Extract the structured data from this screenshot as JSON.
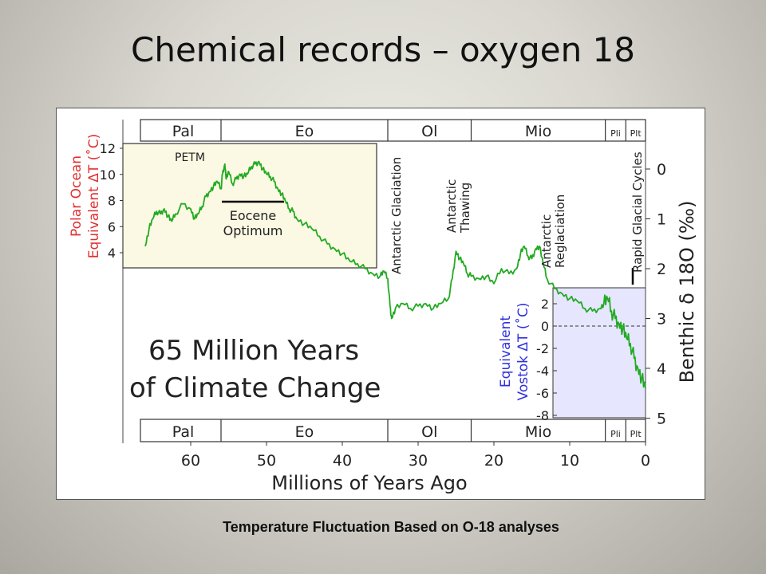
{
  "slide": {
    "title": "Chemical records – oxygen 18",
    "caption": "Temperature Fluctuation Based on O-18 analyses"
  },
  "chart_data": {
    "type": "line",
    "title_lines": [
      "65 Million Years",
      "of Climate Change"
    ],
    "xlabel": "Millions of Years Ago",
    "x_ticks": [
      60,
      50,
      40,
      30,
      20,
      10,
      0
    ],
    "xlim": [
      67,
      0
    ],
    "y_left_label": [
      "Polar Ocean",
      "Equivalent ΔT (˚C)"
    ],
    "y_left_ticks": [
      12,
      10,
      8,
      6,
      4
    ],
    "y_right_label": "Benthic δ 18O (‰)",
    "y_right_ticks": [
      0,
      1,
      2,
      3,
      4,
      5
    ],
    "y_right_lim": [
      5,
      -0.3
    ],
    "vostok_label": [
      "Equivalent",
      "Vostok ΔT (˚C)"
    ],
    "vostok_ticks": [
      "2",
      "0",
      "-2",
      "-4",
      "-6",
      "-8"
    ],
    "epochs": [
      {
        "name": "Pal",
        "start": 66,
        "end": 56
      },
      {
        "name": "Eo",
        "start": 56,
        "end": 34
      },
      {
        "name": "Ol",
        "start": 34,
        "end": 23
      },
      {
        "name": "Mio",
        "start": 23,
        "end": 5.3
      },
      {
        "name": "Pli",
        "start": 5.3,
        "end": 2.6
      },
      {
        "name": "Plt",
        "start": 2.6,
        "end": 0
      }
    ],
    "annotations": [
      {
        "id": "petm",
        "lines": [
          "PETM"
        ]
      },
      {
        "id": "eocene",
        "lines": [
          "Eocene",
          "Optimum"
        ]
      },
      {
        "id": "ant-glaciation",
        "lines": [
          "Antarctic Glaciation"
        ]
      },
      {
        "id": "ant-thawing",
        "lines": [
          "Antarctic",
          "Thawing"
        ]
      },
      {
        "id": "ant-reglaciation",
        "lines": [
          "Antarctic",
          "Reglaciation"
        ]
      },
      {
        "id": "rapid-glacial",
        "lines": [
          "Rapid Glacial Cycles"
        ]
      }
    ],
    "series": [
      {
        "color": "#22aa22",
        "x": [
          66,
          65.5,
          65,
          64.5,
          64,
          63.5,
          63,
          62.5,
          62,
          61,
          60,
          59.5,
          59,
          58.5,
          58,
          57.5,
          57,
          56.5,
          56,
          55.8,
          55.5,
          55.3,
          55,
          54.5,
          54,
          53.5,
          53,
          52.5,
          52,
          51.5,
          51,
          50.5,
          50,
          49.5,
          49,
          48.5,
          48,
          47.5,
          47,
          46.5,
          46,
          45,
          44,
          43,
          42,
          41,
          40,
          39,
          38,
          37,
          36,
          35,
          34.5,
          34,
          33.7,
          33.5,
          33,
          32,
          31,
          30,
          29,
          28,
          27,
          26,
          25.5,
          25,
          24.5,
          24,
          23.5,
          23,
          22,
          21,
          20,
          19,
          18,
          17,
          16.5,
          16,
          15.5,
          15,
          14.5,
          14,
          13.5,
          13,
          12,
          11,
          10,
          9,
          8,
          7,
          6,
          5.5,
          5,
          4.5,
          4,
          3.5,
          3,
          2.5,
          2,
          1.5,
          1,
          0.5,
          0
        ],
        "y": [
          1.55,
          1.2,
          1.0,
          0.85,
          0.9,
          0.8,
          0.95,
          1.05,
          0.9,
          0.7,
          0.8,
          1.0,
          0.9,
          0.75,
          0.55,
          0.45,
          0.35,
          0.25,
          0.4,
          0.1,
          -0.1,
          0.2,
          0.05,
          0.3,
          0.2,
          0.1,
          0.15,
          0.1,
          -0.05,
          -0.1,
          -0.15,
          0.0,
          0.1,
          0.15,
          0.25,
          0.4,
          0.5,
          0.65,
          0.8,
          0.85,
          1.0,
          1.1,
          1.2,
          1.35,
          1.5,
          1.6,
          1.7,
          1.85,
          1.9,
          2.0,
          2.1,
          2.15,
          2.05,
          2.2,
          2.75,
          3.0,
          2.8,
          2.7,
          2.8,
          2.75,
          2.7,
          2.8,
          2.7,
          2.6,
          2.2,
          1.65,
          1.8,
          1.9,
          2.1,
          2.15,
          2.2,
          2.15,
          2.3,
          2.0,
          2.1,
          2.0,
          1.7,
          1.55,
          1.75,
          1.8,
          1.6,
          1.55,
          1.9,
          2.2,
          2.4,
          2.5,
          2.6,
          2.65,
          2.8,
          2.85,
          2.8,
          2.7,
          2.6,
          2.85,
          3.0,
          3.1,
          3.2,
          3.4,
          3.5,
          3.8,
          4.0,
          4.2,
          4.4
        ]
      }
    ],
    "grid": false
  }
}
